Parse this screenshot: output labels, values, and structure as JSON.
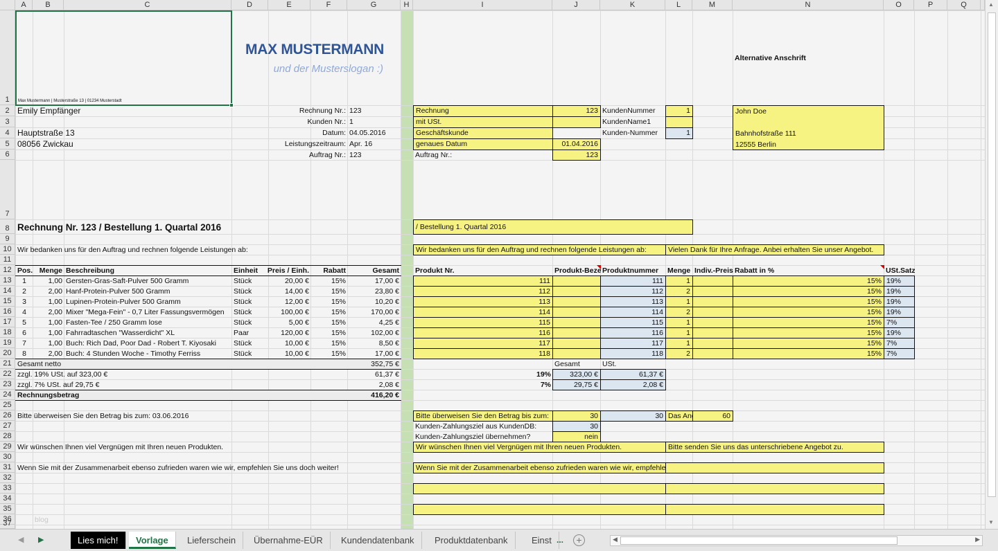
{
  "columns": [
    "A",
    "B",
    "C",
    "D",
    "E",
    "F",
    "G",
    "H",
    "I",
    "J",
    "K",
    "L",
    "M",
    "N",
    "O",
    "P",
    "Q"
  ],
  "rows": [
    1,
    2,
    3,
    4,
    5,
    6,
    7,
    8,
    9,
    10,
    11,
    12,
    13,
    14,
    15,
    16,
    17,
    18,
    19,
    20,
    21,
    22,
    23,
    24,
    25,
    26,
    27,
    28,
    29,
    30,
    31,
    32,
    33,
    34,
    35,
    36,
    37
  ],
  "header": {
    "company": "MAX MUSTERMANN",
    "slogan": "und der Musterslogan :)",
    "sender_line": "Max Mustermann | Musterstraße 13 | 01234 Musterstadt"
  },
  "colors": {
    "yellow": "#f7f383",
    "blue": "#dce6f1",
    "green_column": "#c6e0b4",
    "accent": "#217346",
    "title": "#2f5597"
  },
  "cells": {
    "A2": "Emily Empfänger",
    "D2": "Rechnung Nr.:",
    "G2": "123",
    "D3": "Kunden Nr.:",
    "G3": "1",
    "A4": "Hauptstraße 13",
    "D4": "Datum:",
    "G4": "04.05.2016",
    "A5": "08056 Zwickau",
    "D5": "Leistungszeitraum:",
    "G5": "Apr. 16",
    "D6": "Auftrag Nr.:",
    "G6": "123",
    "A8": "Rechnung Nr. 123 / Bestellung 1. Quartal 2016",
    "A10": "Wir bedanken uns für den Auftrag und rechnen folgende Leistungen ab:",
    "A12": "Pos.",
    "B12": "Menge",
    "C12": "Beschreibung",
    "D12": "Einheit",
    "E12": "Preis / Einh.",
    "F12": "Rabatt",
    "G12": "Gesamt",
    "A13": "1",
    "B13": "1,00",
    "C13": "Gersten-Gras-Saft-Pulver 500 Gramm",
    "D13": "Stück",
    "E13": "20,00 €",
    "F13": "15%",
    "G13": "17,00 €",
    "A14": "2",
    "B14": "2,00",
    "C14": "Hanf-Protein-Pulver 500 Gramm",
    "D14": "Stück",
    "E14": "14,00 €",
    "F14": "15%",
    "G14": "23,80 €",
    "A15": "3",
    "B15": "1,00",
    "C15": "Lupinen-Protein-Pulver 500 Gramm",
    "D15": "Stück",
    "E15": "12,00 €",
    "F15": "15%",
    "G15": "10,20 €",
    "A16": "4",
    "B16": "2,00",
    "C16": "Mixer \"Mega-Fein\" - 0,7 Liter Fassungsvermögen",
    "D16": "Stück",
    "E16": "100,00 €",
    "F16": "15%",
    "G16": "170,00 €",
    "A17": "5",
    "B17": "1,00",
    "C17": "Fasten-Tee / 250 Gramm lose",
    "D17": "Stück",
    "E17": "5,00 €",
    "F17": "15%",
    "G17": "4,25 €",
    "A18": "6",
    "B18": "1,00",
    "C18": "Fahrradtaschen \"Wasserdicht\" XL",
    "D18": "Paar",
    "E18": "120,00 €",
    "F18": "15%",
    "G18": "102,00 €",
    "A19": "7",
    "B19": "1,00",
    "C19": "Buch: Rich Dad, Poor Dad - Robert T. Kiyosaki",
    "D19": "Stück",
    "E19": "10,00 €",
    "F19": "15%",
    "G19": "8,50 €",
    "A20": "8",
    "B20": "2,00",
    "C20": "Buch: 4 Stunden Woche - Timothy Ferriss",
    "D20": "Stück",
    "E20": "10,00 €",
    "F20": "15%",
    "G20": "17,00 €",
    "A21": "Gesamt netto",
    "G21": "352,75 €",
    "A22": "zzgl. 19% USt. auf 323,00 €",
    "G22": "61,37 €",
    "A23": "zzgl. 7% USt. auf 29,75 €",
    "G23": "2,08 €",
    "A24": "Rechnungsbetrag",
    "G24": "416,20 €",
    "A26": "Bitte überweisen Sie den Betrag bis zum: 03.06.2016",
    "A29": "Wir wünschen Ihnen viel Vergnügen mit Ihren neuen Produkten.",
    "A31": "Wenn Sie mit der Zusammenarbeit ebenso zufrieden waren wie wir, empfehlen Sie uns doch weiter!",
    "B36": "blog",
    "N1": "Alternative Anschrift",
    "I2": "Rechnung",
    "J2": "123",
    "K2": "KundenNummer",
    "L2": "1",
    "N2": "John Doe",
    "I3": "mit USt.",
    "K3": "KundenName1",
    "I4": "Geschäftskunde",
    "K4": "Kunden-Nummer",
    "L4": "1",
    "N4": "Bahnhofstraße 111",
    "I5": "genaues Datum",
    "J5": "01.04.2016",
    "N5": "12555 Berlin",
    "I6": "Auftrag Nr.:",
    "J6": "123",
    "I8": "/ Bestellung 1. Quartal 2016",
    "I10": "Wir bedanken uns für den Auftrag und rechnen folgende Leistungen ab:",
    "L10": "Vielen Dank für Ihre Anfrage. Anbei erhalten Sie unser Angebot.",
    "I12": "Produkt Nr.",
    "J12": "Produkt-Bezeichnung",
    "K12": "Produktnummer",
    "L12": "Menge",
    "M12": "Indiv.-Preis",
    "N12": "Rabatt in %",
    "O12": "USt.Satz",
    "I13": "111",
    "K13": "111",
    "L13": "1",
    "N13": "15%",
    "O13": "19%",
    "I14": "112",
    "K14": "112",
    "L14": "2",
    "N14": "15%",
    "O14": "19%",
    "I15": "113",
    "K15": "113",
    "L15": "1",
    "N15": "15%",
    "O15": "19%",
    "I16": "114",
    "K16": "114",
    "L16": "2",
    "N16": "15%",
    "O16": "19%",
    "I17": "115",
    "K17": "115",
    "L17": "1",
    "N17": "15%",
    "O17": "7%",
    "I18": "116",
    "K18": "116",
    "L18": "1",
    "N18": "15%",
    "O18": "19%",
    "I19": "117",
    "K19": "117",
    "L19": "1",
    "N19": "15%",
    "O19": "7%",
    "I20": "118",
    "K20": "118",
    "L20": "2",
    "N20": "15%",
    "O20": "7%",
    "J21": "Gesamt",
    "K21": "USt.",
    "I22": "19%",
    "J22": "323,00 €",
    "K22": "61,37 €",
    "I23": "7%",
    "J23": "29,75 €",
    "K23": "2,08 €",
    "I26": "Bitte überweisen Sie den Betrag bis zum:",
    "J26": "30",
    "K26": "30",
    "L26": "Das Angebot",
    "M26": "60",
    "I27": "Kunden-Zahlungsziel aus KundenDB:",
    "J27": "30",
    "I28": "Kunden-Zahlungsziel übernehmen?",
    "J28": "nein",
    "I29": "Wir wünschen Ihnen viel Vergnügen mit Ihren neuen Produkten.",
    "L29": "Bitte senden Sie uns das unterschriebene Angebot zu.",
    "I31": "Wenn Sie mit der Zusammenarbeit ebenso zufrieden waren wie wir, empfehlen Sie uns doch weiter!"
  },
  "sheet_tabs": [
    "Lies mich!",
    "Vorlage",
    "Lieferschein",
    "Übernahme-EÜR",
    "Kundendatenbank",
    "Produktdatenbank",
    "Einst"
  ],
  "active_tab": "Vorlage",
  "more_tabs": "...",
  "add_sheet": "+"
}
